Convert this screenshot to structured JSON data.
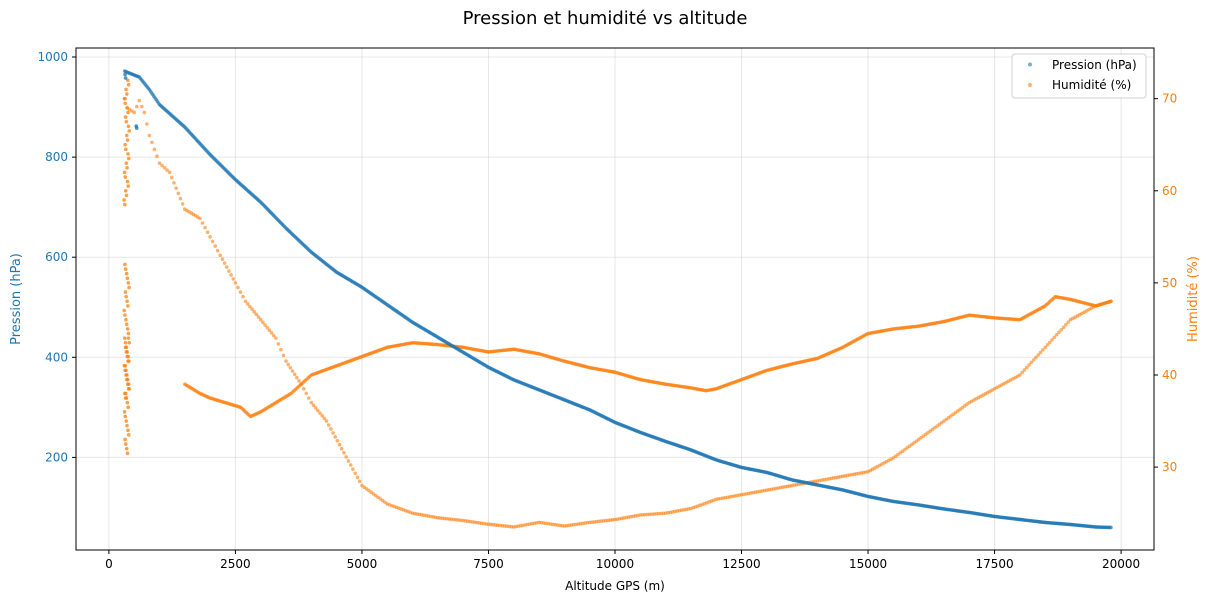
{
  "chart_data": {
    "type": "scatter",
    "title": "Pression et humidité vs altitude",
    "xlabel": "Altitude GPS (m)",
    "ylabel": "Pression (hPa)",
    "y2label": "Humidité (%)",
    "xlim": [
      -650,
      20650
    ],
    "ylim": [
      15,
      1018
    ],
    "y2lim": [
      21,
      75.5
    ],
    "xticks": [
      0,
      2500,
      5000,
      7500,
      10000,
      12500,
      15000,
      17500,
      20000
    ],
    "yticks": [
      200,
      400,
      600,
      800,
      1000
    ],
    "y2ticks": [
      30,
      40,
      50,
      60,
      70
    ],
    "grid": true,
    "legend_position": "top-right",
    "colors": {
      "pressure": "#1f77b4",
      "humidity": "#ff7f0e"
    },
    "series": [
      {
        "name": "Pression (hPa)",
        "axis": "left",
        "points": [
          [
            310,
            972
          ],
          [
            400,
            968
          ],
          [
            600,
            960
          ],
          [
            800,
            935
          ],
          [
            1000,
            905
          ],
          [
            1500,
            860
          ],
          [
            2000,
            805
          ],
          [
            2500,
            755
          ],
          [
            3000,
            710
          ],
          [
            3500,
            658
          ],
          [
            4000,
            610
          ],
          [
            4500,
            570
          ],
          [
            5000,
            540
          ],
          [
            5500,
            505
          ],
          [
            6000,
            470
          ],
          [
            6500,
            440
          ],
          [
            7000,
            410
          ],
          [
            7500,
            380
          ],
          [
            8000,
            355
          ],
          [
            8500,
            335
          ],
          [
            9000,
            315
          ],
          [
            9500,
            295
          ],
          [
            10000,
            270
          ],
          [
            10500,
            250
          ],
          [
            11000,
            232
          ],
          [
            11500,
            215
          ],
          [
            12000,
            195
          ],
          [
            12500,
            180
          ],
          [
            13000,
            170
          ],
          [
            13500,
            155
          ],
          [
            14000,
            145
          ],
          [
            14500,
            135
          ],
          [
            15000,
            122
          ],
          [
            15500,
            112
          ],
          [
            16000,
            105
          ],
          [
            16500,
            97
          ],
          [
            17000,
            90
          ],
          [
            17500,
            82
          ],
          [
            18000,
            76
          ],
          [
            18500,
            70
          ],
          [
            19000,
            66
          ],
          [
            19500,
            61
          ],
          [
            19800,
            60
          ]
        ],
        "extra_points": [
          [
            540,
            862
          ],
          [
            550,
            858
          ],
          [
            320,
            965
          ],
          [
            330,
            958
          ]
        ]
      },
      {
        "name": "Humidité (%)",
        "axis": "right",
        "points": [
          [
            320,
            70
          ],
          [
            360,
            69
          ],
          [
            500,
            68.5
          ],
          [
            600,
            69.8
          ],
          [
            700,
            68.5
          ],
          [
            800,
            66
          ],
          [
            1000,
            63
          ],
          [
            1200,
            62
          ],
          [
            1500,
            58
          ],
          [
            1800,
            57
          ],
          [
            2000,
            55
          ],
          [
            2200,
            53
          ],
          [
            2500,
            50
          ],
          [
            2700,
            48
          ],
          [
            3000,
            46
          ],
          [
            3300,
            44
          ],
          [
            3500,
            41.5
          ],
          [
            3800,
            39
          ],
          [
            4000,
            37
          ],
          [
            4300,
            35
          ],
          [
            4600,
            32
          ],
          [
            5000,
            28
          ],
          [
            5500,
            26
          ],
          [
            6000,
            25
          ],
          [
            6500,
            24.5
          ],
          [
            7000,
            24.2
          ],
          [
            7500,
            23.8
          ],
          [
            8000,
            23.5
          ],
          [
            8500,
            24
          ],
          [
            9000,
            23.6
          ],
          [
            9500,
            24
          ],
          [
            10000,
            24.3
          ],
          [
            10500,
            24.8
          ],
          [
            11000,
            25
          ],
          [
            11500,
            25.5
          ],
          [
            12000,
            26.5
          ],
          [
            12500,
            27
          ],
          [
            13000,
            27.5
          ],
          [
            13500,
            28
          ],
          [
            14000,
            28.5
          ],
          [
            14500,
            29
          ],
          [
            15000,
            29.5
          ],
          [
            15500,
            31
          ],
          [
            16000,
            33
          ],
          [
            16500,
            35
          ],
          [
            17000,
            37
          ],
          [
            17500,
            38.5
          ],
          [
            18000,
            40
          ],
          [
            18500,
            43
          ],
          [
            19000,
            46
          ],
          [
            19500,
            47.5
          ],
          [
            19800,
            48
          ]
        ],
        "points_lower": [
          [
            1500,
            39
          ],
          [
            1800,
            38
          ],
          [
            2000,
            37.5
          ],
          [
            2300,
            37
          ],
          [
            2600,
            36.5
          ],
          [
            2800,
            35.5
          ],
          [
            3000,
            36
          ],
          [
            3300,
            37
          ],
          [
            3600,
            38
          ],
          [
            4000,
            40
          ],
          [
            4500,
            41
          ],
          [
            5000,
            42
          ],
          [
            5500,
            43
          ],
          [
            6000,
            43.5
          ],
          [
            6500,
            43.3
          ],
          [
            7000,
            43
          ],
          [
            7500,
            42.5
          ],
          [
            8000,
            42.8
          ],
          [
            8500,
            42.3
          ],
          [
            9000,
            41.5
          ],
          [
            9500,
            40.8
          ],
          [
            10000,
            40.3
          ],
          [
            10500,
            39.5
          ],
          [
            11000,
            39
          ],
          [
            11500,
            38.6
          ],
          [
            11800,
            38.3
          ],
          [
            12000,
            38.5
          ],
          [
            12500,
            39.5
          ],
          [
            13000,
            40.5
          ],
          [
            13500,
            41.2
          ],
          [
            14000,
            41.8
          ],
          [
            14500,
            43
          ],
          [
            15000,
            44.5
          ],
          [
            15500,
            45
          ],
          [
            16000,
            45.3
          ],
          [
            16500,
            45.8
          ],
          [
            17000,
            46.5
          ],
          [
            17500,
            46.2
          ],
          [
            18000,
            46
          ],
          [
            18500,
            47.5
          ],
          [
            18700,
            48.5
          ],
          [
            19000,
            48.2
          ],
          [
            19500,
            47.5
          ],
          [
            19800,
            48
          ]
        ],
        "vertical_band": {
          "x_min": 300,
          "x_max": 560,
          "values": [
            59,
            60,
            61,
            62,
            63,
            64,
            65,
            66,
            67,
            68,
            69,
            70,
            71,
            72,
            52,
            51,
            50,
            49,
            48,
            47,
            46,
            45,
            44,
            43,
            42,
            41,
            40,
            39,
            38,
            37,
            36,
            35,
            34,
            33,
            32,
            44,
            43,
            42,
            41,
            40,
            39,
            38
          ]
        }
      }
    ]
  }
}
